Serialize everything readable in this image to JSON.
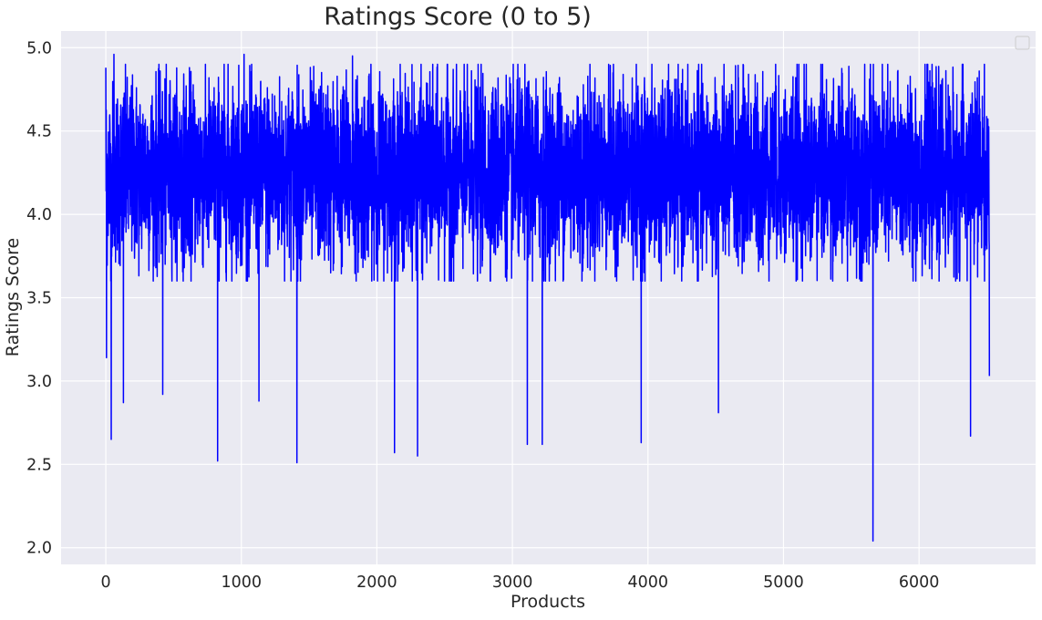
{
  "chart_data": {
    "type": "line",
    "title": "Ratings Score (0 to 5)",
    "xlabel": "Products",
    "ylabel": "Ratings Score",
    "xlim": [
      -330,
      6860
    ],
    "ylim": [
      1.9,
      5.1
    ],
    "xticks": [
      0,
      1000,
      2000,
      3000,
      4000,
      5000,
      6000
    ],
    "yticks": [
      2.0,
      2.5,
      3.0,
      3.5,
      4.0,
      4.5,
      5.0
    ],
    "xtick_labels": [
      "0",
      "1000",
      "2000",
      "3000",
      "4000",
      "5000",
      "6000"
    ],
    "ytick_labels": [
      "2.0",
      "2.5",
      "3.0",
      "3.5",
      "4.0",
      "4.5",
      "5.0"
    ],
    "grid": true,
    "legend": {
      "position": "top-right",
      "entries": []
    },
    "series": [
      {
        "color": "#0000ff",
        "n_points": 6520,
        "x_range": [
          0,
          6519
        ],
        "typical_range": [
          3.6,
          4.9
        ],
        "center": 4.25,
        "notable_points": [
          {
            "x": 0,
            "y": 4.88
          },
          {
            "x": 5,
            "y": 3.14
          },
          {
            "x": 40,
            "y": 2.65
          },
          {
            "x": 60,
            "y": 4.96
          },
          {
            "x": 130,
            "y": 2.87
          },
          {
            "x": 420,
            "y": 2.92
          },
          {
            "x": 825,
            "y": 2.52
          },
          {
            "x": 1020,
            "y": 4.96
          },
          {
            "x": 1130,
            "y": 2.88
          },
          {
            "x": 1410,
            "y": 2.51
          },
          {
            "x": 1820,
            "y": 4.95
          },
          {
            "x": 2130,
            "y": 2.57
          },
          {
            "x": 2300,
            "y": 2.55
          },
          {
            "x": 3110,
            "y": 2.62
          },
          {
            "x": 3220,
            "y": 2.62
          },
          {
            "x": 3950,
            "y": 2.63
          },
          {
            "x": 4520,
            "y": 2.81
          },
          {
            "x": 5660,
            "y": 2.04
          },
          {
            "x": 6380,
            "y": 2.67
          },
          {
            "x": 6519,
            "y": 3.03
          }
        ]
      }
    ]
  }
}
